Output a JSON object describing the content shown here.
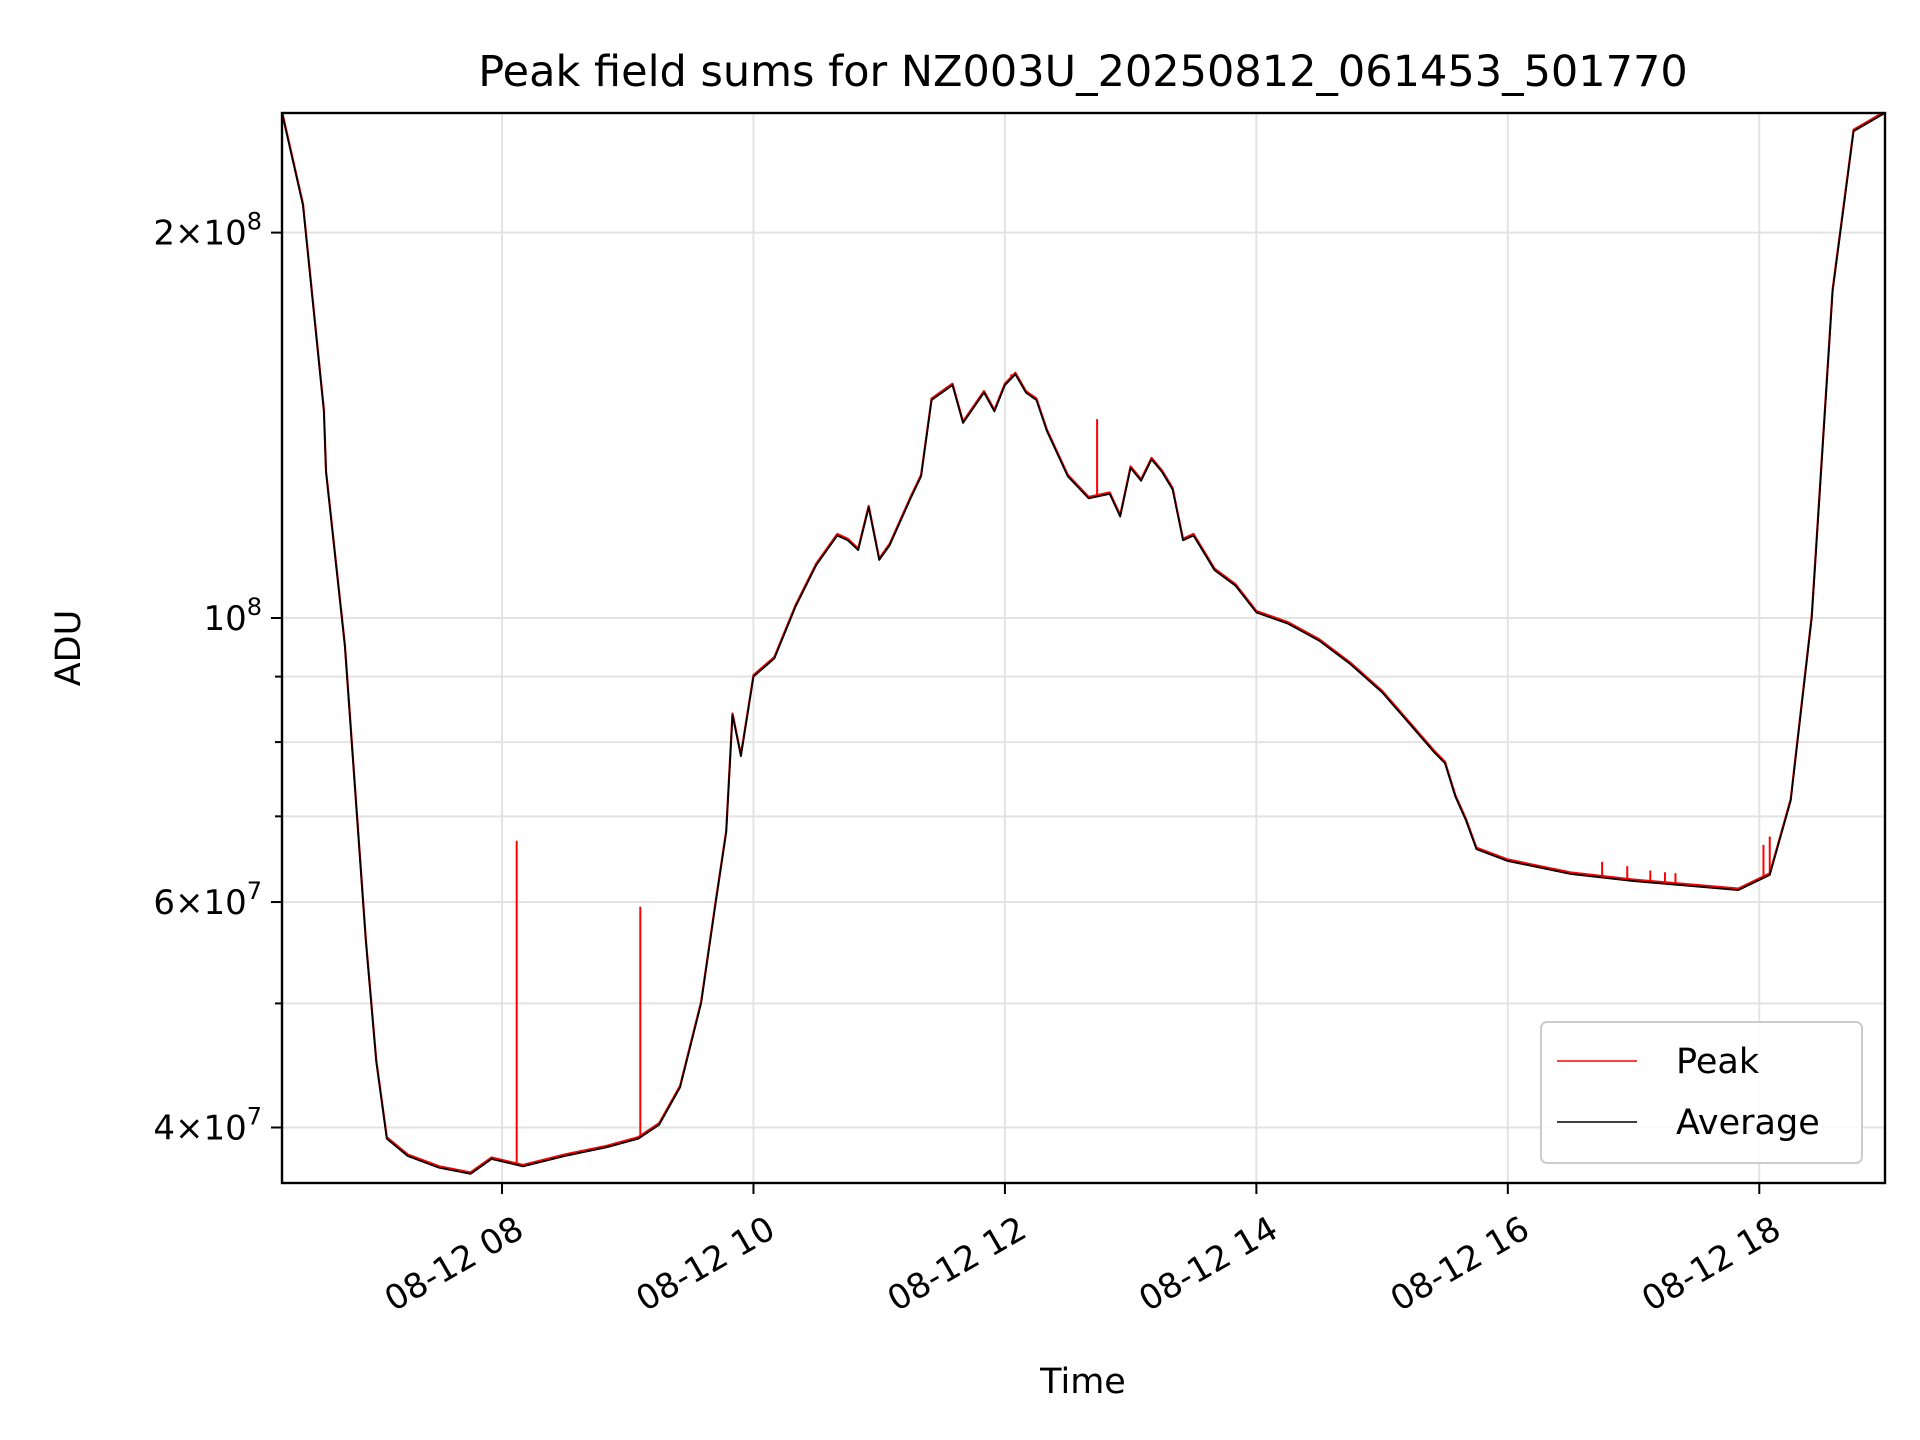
{
  "chart_data": {
    "type": "line",
    "title": "Peak field sums for NZ003U_20250812_061453_501770",
    "xlabel": "Time",
    "ylabel": "ADU",
    "y_scale": "log",
    "xlim": [
      "2025-08-12 06:15",
      "2025-08-12 19:00"
    ],
    "ylim": [
      36200000,
      248000000
    ],
    "grid": true,
    "legend_position": "lower right",
    "x_ticks": [
      {
        "value": "2025-08-12 08:00",
        "label": "08-12 08"
      },
      {
        "value": "2025-08-12 10:00",
        "label": "08-12 10"
      },
      {
        "value": "2025-08-12 12:00",
        "label": "08-12 12"
      },
      {
        "value": "2025-08-12 14:00",
        "label": "08-12 14"
      },
      {
        "value": "2025-08-12 16:00",
        "label": "08-12 16"
      },
      {
        "value": "2025-08-12 18:00",
        "label": "08-12 18"
      }
    ],
    "y_ticks": [
      {
        "value": 40000000,
        "base": "4",
        "exp": "7"
      },
      {
        "value": 60000000,
        "base": "6",
        "exp": "7"
      },
      {
        "value": 100000000,
        "base": "",
        "exp": "8"
      },
      {
        "value": 200000000,
        "base": "2",
        "exp": "8"
      }
    ],
    "y_minor_ticks": [
      50000000,
      70000000,
      80000000,
      90000000
    ],
    "series": [
      {
        "name": "Average",
        "color": "#000000",
        "points": [
          [
            "2025-08-12 06:15",
            248000000
          ],
          [
            "2025-08-12 06:25",
            210000000
          ],
          [
            "2025-08-12 06:35",
            145000000
          ],
          [
            "2025-08-12 06:36",
            130000000
          ],
          [
            "2025-08-12 06:45",
            95000000
          ],
          [
            "2025-08-12 06:55",
            56000000
          ],
          [
            "2025-08-12 07:00",
            45000000
          ],
          [
            "2025-08-12 07:05",
            39200000
          ],
          [
            "2025-08-12 07:15",
            38000000
          ],
          [
            "2025-08-12 07:30",
            37200000
          ],
          [
            "2025-08-12 07:45",
            36800000
          ],
          [
            "2025-08-12 07:55",
            37800000
          ],
          [
            "2025-08-12 08:10",
            37300000
          ],
          [
            "2025-08-12 08:30",
            38000000
          ],
          [
            "2025-08-12 08:50",
            38600000
          ],
          [
            "2025-08-12 09:05",
            39200000
          ],
          [
            "2025-08-12 09:15",
            40200000
          ],
          [
            "2025-08-12 09:25",
            43000000
          ],
          [
            "2025-08-12 09:35",
            50000000
          ],
          [
            "2025-08-12 09:42",
            60000000
          ],
          [
            "2025-08-12 09:47",
            68000000
          ],
          [
            "2025-08-12 09:50",
            84000000
          ],
          [
            "2025-08-12 09:54",
            78000000
          ],
          [
            "2025-08-12 10:00",
            90000000
          ],
          [
            "2025-08-12 10:10",
            93000000
          ],
          [
            "2025-08-12 10:20",
            102000000
          ],
          [
            "2025-08-12 10:30",
            110000000
          ],
          [
            "2025-08-12 10:40",
            116000000
          ],
          [
            "2025-08-12 10:45",
            115000000
          ],
          [
            "2025-08-12 10:50",
            113000000
          ],
          [
            "2025-08-12 10:55",
            122000000
          ],
          [
            "2025-08-12 11:00",
            111000000
          ],
          [
            "2025-08-12 11:05",
            114000000
          ],
          [
            "2025-08-12 11:15",
            124000000
          ],
          [
            "2025-08-12 11:20",
            129000000
          ],
          [
            "2025-08-12 11:25",
            148000000
          ],
          [
            "2025-08-12 11:35",
            152000000
          ],
          [
            "2025-08-12 11:40",
            142000000
          ],
          [
            "2025-08-12 11:50",
            150000000
          ],
          [
            "2025-08-12 11:55",
            145000000
          ],
          [
            "2025-08-12 12:00",
            152000000
          ],
          [
            "2025-08-12 12:05",
            155000000
          ],
          [
            "2025-08-12 12:10",
            150000000
          ],
          [
            "2025-08-12 12:15",
            148000000
          ],
          [
            "2025-08-12 12:20",
            140000000
          ],
          [
            "2025-08-12 12:30",
            129000000
          ],
          [
            "2025-08-12 12:40",
            124000000
          ],
          [
            "2025-08-12 12:50",
            125000000
          ],
          [
            "2025-08-12 12:55",
            120000000
          ],
          [
            "2025-08-12 13:00",
            131000000
          ],
          [
            "2025-08-12 13:05",
            128000000
          ],
          [
            "2025-08-12 13:10",
            133000000
          ],
          [
            "2025-08-12 13:15",
            130000000
          ],
          [
            "2025-08-12 13:20",
            126000000
          ],
          [
            "2025-08-12 13:25",
            115000000
          ],
          [
            "2025-08-12 13:30",
            116000000
          ],
          [
            "2025-08-12 13:40",
            109000000
          ],
          [
            "2025-08-12 13:50",
            106000000
          ],
          [
            "2025-08-12 14:00",
            101000000
          ],
          [
            "2025-08-12 14:15",
            99000000
          ],
          [
            "2025-08-12 14:30",
            96000000
          ],
          [
            "2025-08-12 14:45",
            92000000
          ],
          [
            "2025-08-12 15:00",
            87500000
          ],
          [
            "2025-08-12 15:15",
            82000000
          ],
          [
            "2025-08-12 15:25",
            78500000
          ],
          [
            "2025-08-12 15:30",
            77000000
          ],
          [
            "2025-08-12 15:35",
            72500000
          ],
          [
            "2025-08-12 15:40",
            69500000
          ],
          [
            "2025-08-12 15:45",
            66000000
          ],
          [
            "2025-08-12 16:00",
            64600000
          ],
          [
            "2025-08-12 16:30",
            63100000
          ],
          [
            "2025-08-12 17:00",
            62300000
          ],
          [
            "2025-08-12 17:30",
            61700000
          ],
          [
            "2025-08-12 17:50",
            61300000
          ],
          [
            "2025-08-12 18:05",
            63000000
          ],
          [
            "2025-08-12 18:15",
            72000000
          ],
          [
            "2025-08-12 18:25",
            100000000
          ],
          [
            "2025-08-12 18:35",
            180000000
          ],
          [
            "2025-08-12 18:45",
            240000000
          ],
          [
            "2025-08-12 19:00",
            248000000
          ]
        ]
      },
      {
        "name": "Peak",
        "color": "#ff0000",
        "spikes": [
          [
            "2025-08-12 06:56",
            53500000
          ],
          [
            "2025-08-12 08:07",
            67000000
          ],
          [
            "2025-08-12 09:06",
            59500000
          ],
          [
            "2025-08-12 12:03",
            155000000
          ],
          [
            "2025-08-12 12:44",
            143000000
          ],
          [
            "2025-08-12 16:45",
            64500000
          ],
          [
            "2025-08-12 16:57",
            64000000
          ],
          [
            "2025-08-12 17:08",
            63500000
          ],
          [
            "2025-08-12 17:15",
            63300000
          ],
          [
            "2025-08-12 17:20",
            63200000
          ],
          [
            "2025-08-12 18:02",
            66500000
          ],
          [
            "2025-08-12 18:05",
            67500000
          ]
        ]
      }
    ]
  }
}
